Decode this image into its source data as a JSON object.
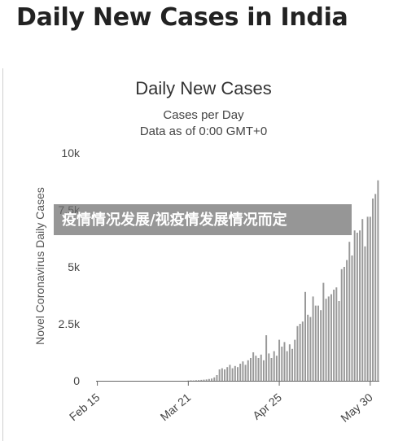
{
  "page_title": "Daily New Cases in India",
  "overlay_text": "疫情情况发展/视疫情发展情况而定",
  "colors": {
    "bar": "#999999",
    "axis": "#666666",
    "grid": "#eeeeee",
    "text": "#444444"
  },
  "chart_data": {
    "type": "bar",
    "title": "Daily New Cases",
    "subtitle": "Cases per Day",
    "subtitle2": "Data as of 0:00 GMT+0",
    "ylabel": "Novel Coronavirus Daily Cases",
    "xlabel": "",
    "ylim": [
      0,
      10000
    ],
    "yticks": [
      0,
      2500,
      5000,
      7500,
      10000
    ],
    "ytick_labels": [
      "0",
      "2.5k",
      "5k",
      "7.5k",
      "10k"
    ],
    "xtick_labels": [
      "Feb 15",
      "Mar 21",
      "Apr 25",
      "May 30"
    ],
    "xtick_index": [
      0,
      35,
      70,
      105
    ],
    "grid": false,
    "start_date": "Feb 15",
    "values": [
      0,
      0,
      0,
      0,
      0,
      0,
      0,
      0,
      0,
      0,
      0,
      0,
      0,
      0,
      0,
      0,
      0,
      0,
      0,
      0,
      0,
      0,
      0,
      0,
      0,
      0,
      0,
      0,
      0,
      0,
      0,
      0,
      0,
      0,
      0,
      10,
      20,
      15,
      25,
      30,
      40,
      50,
      60,
      80,
      100,
      150,
      250,
      500,
      550,
      500,
      600,
      700,
      550,
      650,
      600,
      750,
      850,
      700,
      900,
      1000,
      1250,
      1100,
      1000,
      1150,
      900,
      2000,
      1200,
      1000,
      1300,
      1100,
      1800,
      1500,
      1700,
      1300,
      1600,
      1400,
      1800,
      2400,
      2500,
      2600,
      3900,
      2900,
      2800,
      3700,
      3300,
      3300,
      3100,
      4300,
      3600,
      3700,
      3800,
      4000,
      4100,
      3500,
      4900,
      5000,
      5300,
      6100,
      5500,
      6600,
      6500,
      6600,
      7100,
      5900,
      7200,
      7200,
      8000,
      8200,
      8800
    ]
  }
}
